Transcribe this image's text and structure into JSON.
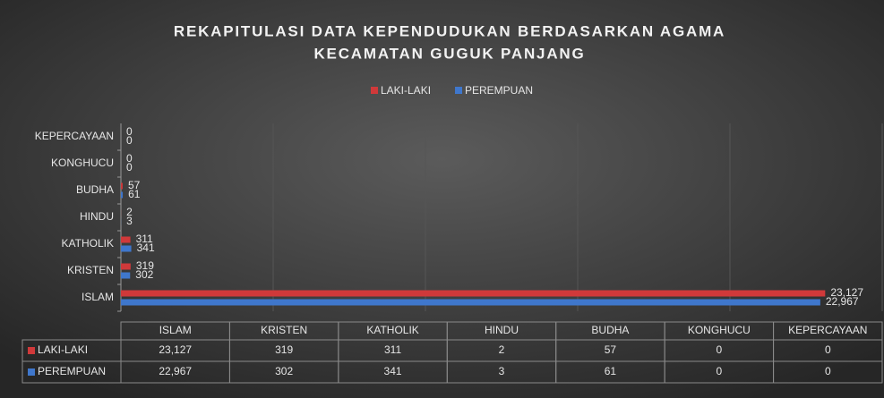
{
  "chart_data": {
    "type": "barh",
    "title": [
      "REKAPITULASI DATA KEPENDUDUKAN BERDASARKAN AGAMA",
      "KECAMATAN GUGUK PANJANG"
    ],
    "categories": [
      "ISLAM",
      "KRISTEN",
      "KATHOLIK",
      "HINDU",
      "BUDHA",
      "KONGHUCU",
      "KEPERCAYAAN"
    ],
    "series": [
      {
        "name": "LAKI-LAKI",
        "color": "#d0393a",
        "values": [
          23127,
          319,
          311,
          2,
          57,
          0,
          0
        ],
        "value_labels": [
          "23,127",
          "319",
          "311",
          "2",
          "57",
          "0",
          "0"
        ]
      },
      {
        "name": "PEREMPUAN",
        "color": "#3f77cc",
        "values": [
          22967,
          302,
          341,
          3,
          61,
          0,
          0
        ],
        "value_labels": [
          "22,967",
          "302",
          "341",
          "3",
          "61",
          "0",
          "0"
        ]
      }
    ],
    "xlim": [
      0,
      25000
    ],
    "xticks": [
      0,
      5000,
      10000,
      15000,
      20000,
      25000
    ],
    "grid": true,
    "legend": "top",
    "data_table": true
  }
}
